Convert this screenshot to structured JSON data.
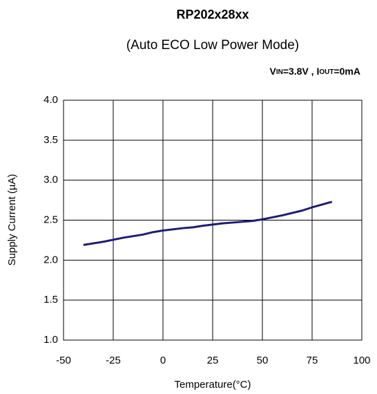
{
  "chart_data": {
    "type": "line",
    "title": "RP202x28xx",
    "subtitle": "(Auto ECO Low Power Mode)",
    "annotation": [
      "V",
      "IN",
      "=3.8V , I",
      "OUT",
      "=0mA"
    ],
    "x_label": "Temperature(°C)",
    "y_label": "Supply Current (µA)",
    "x": [
      -40,
      -30,
      -20,
      -10,
      -5,
      0,
      10,
      15,
      20,
      30,
      40,
      45,
      50,
      60,
      70,
      75,
      85
    ],
    "series": [
      {
        "name": "Supply Current",
        "color": "#1c1c78",
        "values": [
          2.19,
          2.23,
          2.28,
          2.32,
          2.35,
          2.37,
          2.4,
          2.41,
          2.43,
          2.46,
          2.48,
          2.49,
          2.51,
          2.56,
          2.62,
          2.66,
          2.73
        ]
      }
    ],
    "xlim": [
      -50,
      100
    ],
    "xticks": [
      -50,
      -25,
      0,
      25,
      50,
      75,
      100
    ],
    "ylim": [
      1,
      4
    ],
    "yticks": [
      {
        "value": 1,
        "label": "1.0"
      },
      1.5,
      {
        "value": 2,
        "label": "2.0"
      },
      2.5,
      {
        "value": 3,
        "label": "3.0"
      },
      3.5,
      {
        "value": 4,
        "label": "4.0"
      }
    ],
    "grid": true
  }
}
